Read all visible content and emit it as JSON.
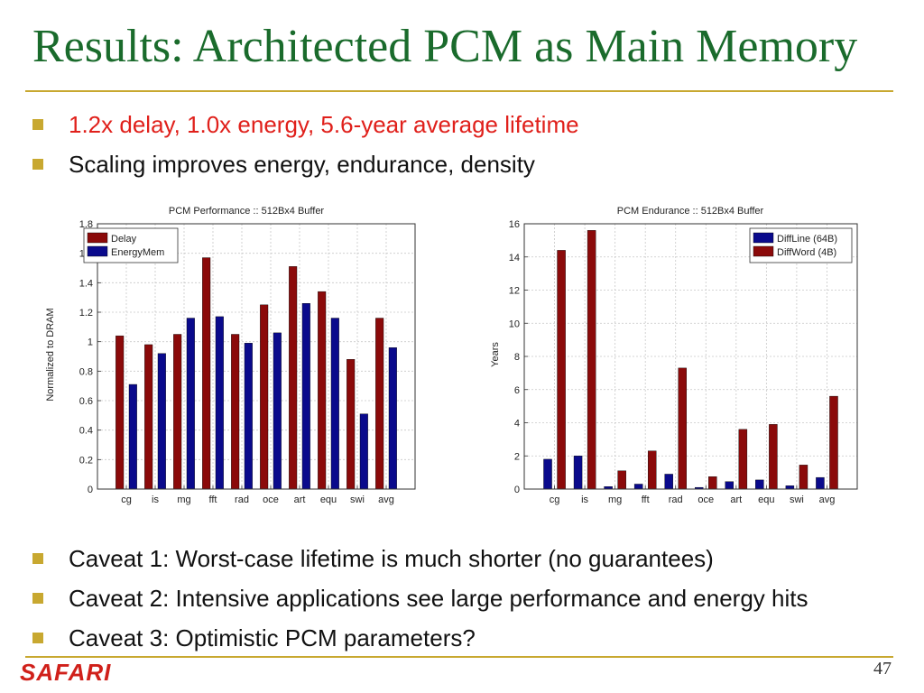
{
  "slide": {
    "title": "Results: Architected PCM as Main Memory",
    "top_bullets": [
      {
        "text": "1.2x delay, 1.0x energy, 5.6-year average lifetime",
        "color": "#e0201b"
      },
      {
        "text": "Scaling improves energy, endurance, density",
        "color": "#111111"
      }
    ],
    "bottom_bullets": [
      {
        "text": "Caveat 1: Worst-case lifetime is much shorter (no guarantees)"
      },
      {
        "text": "Caveat 2: Intensive applications see large performance and energy hits"
      },
      {
        "text": "Caveat 3: Optimistic PCM parameters?"
      }
    ],
    "logo": "SAFARI",
    "page_number": "47"
  },
  "colors": {
    "title": "#1a6b2c",
    "rule": "#c8a830",
    "bullet": "#c8a830",
    "logo": "#d0201a",
    "dark_red": "#8b0a0a",
    "dark_blue": "#0a0a8c"
  },
  "chart_data": [
    {
      "type": "bar",
      "title": "PCM Performance :: 512Bx4 Buffer",
      "xlabel": "",
      "ylabel": "Normalized to DRAM",
      "ylim": [
        0,
        1.8
      ],
      "yticks": [
        0,
        0.2,
        0.4,
        0.6,
        0.8,
        1,
        1.2,
        1.4,
        1.6,
        1.8
      ],
      "ytick_labels": [
        "0",
        "0.2",
        "0.4",
        "0.6",
        "0.8",
        "1",
        "1.2",
        "1.4",
        "1.6",
        "1.8"
      ],
      "grid": true,
      "legend": "top-left",
      "categories": [
        "cg",
        "is",
        "mg",
        "fft",
        "rad",
        "oce",
        "art",
        "equ",
        "swi",
        "avg"
      ],
      "series": [
        {
          "name": "Delay",
          "color": "#8b0a0a",
          "values": [
            1.04,
            0.98,
            1.05,
            1.57,
            1.05,
            1.25,
            1.51,
            1.34,
            0.88,
            1.16
          ]
        },
        {
          "name": "EnergyMem",
          "color": "#0a0a8c",
          "values": [
            0.71,
            0.92,
            1.16,
            1.17,
            0.99,
            1.06,
            1.26,
            1.16,
            0.51,
            0.96
          ]
        }
      ]
    },
    {
      "type": "bar",
      "title": "PCM Endurance :: 512Bx4 Buffer",
      "xlabel": "",
      "ylabel": "Years",
      "ylim": [
        0,
        16
      ],
      "yticks": [
        0,
        2,
        4,
        6,
        8,
        10,
        12,
        14,
        16
      ],
      "ytick_labels": [
        "0",
        "2",
        "4",
        "6",
        "8",
        "10",
        "12",
        "14",
        "16"
      ],
      "grid": true,
      "legend": "top-right",
      "categories": [
        "cg",
        "is",
        "mg",
        "fft",
        "rad",
        "oce",
        "art",
        "equ",
        "swi",
        "avg"
      ],
      "series": [
        {
          "name": "DiffLine (64B)",
          "color": "#0a0a8c",
          "values": [
            1.8,
            2.0,
            0.15,
            0.3,
            0.9,
            0.1,
            0.45,
            0.55,
            0.2,
            0.7
          ]
        },
        {
          "name": "DiffWord (4B)",
          "color": "#8b0a0a",
          "values": [
            14.4,
            15.6,
            1.1,
            2.3,
            7.3,
            0.75,
            3.6,
            3.9,
            1.45,
            5.6
          ]
        }
      ]
    }
  ]
}
